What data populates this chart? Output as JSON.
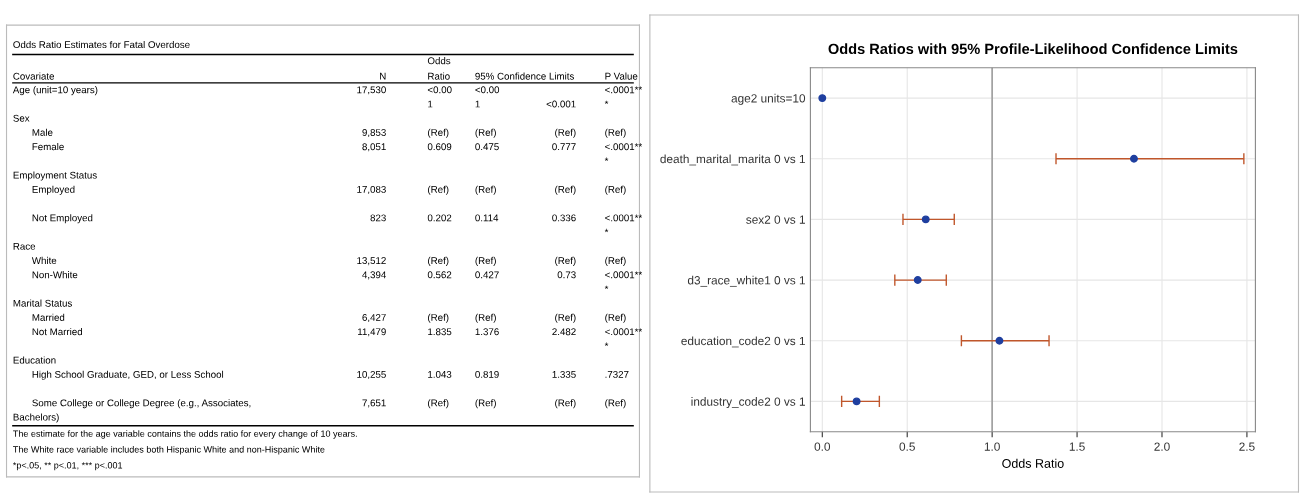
{
  "chart_data": [
    {
      "type": "other",
      "title": "Odds Ratio Estimates for Fatal Overdose",
      "categories": [
        "Covariate",
        "N",
        "Odds\nRatio",
        "95% Confidence Limits",
        null,
        "P Value"
      ],
      "cell_labels": [
        [
          "Age (unit=10 years)",
          "17,530",
          "<0.00",
          "<0.00",
          null,
          "<.0001**"
        ],
        [
          null,
          null,
          "1",
          "1",
          "<0.001",
          "*"
        ],
        [
          "Sex",
          null,
          null,
          null,
          null,
          null
        ],
        [
          "Male",
          "9,853",
          "(Ref)",
          "(Ref)",
          "(Ref)",
          "(Ref)"
        ],
        [
          "Female",
          "8,051",
          "0.609",
          "0.475",
          "0.777",
          "<.0001**"
        ],
        [
          null,
          null,
          null,
          null,
          null,
          "*"
        ],
        [
          "Employment Status",
          null,
          null,
          null,
          null,
          null
        ],
        [
          "Employed",
          "17,083",
          "(Ref)",
          "(Ref)",
          "(Ref)",
          "(Ref)"
        ],
        [
          null,
          null,
          null,
          null,
          null,
          null
        ],
        [
          "Not Employed",
          "823",
          "0.202",
          "0.114",
          "0.336",
          "<.0001**"
        ],
        [
          null,
          null,
          null,
          null,
          null,
          "*"
        ],
        [
          "Race",
          null,
          null,
          null,
          null,
          null
        ],
        [
          "White",
          "13,512",
          "(Ref)",
          "(Ref)",
          "(Ref)",
          "(Ref)"
        ],
        [
          "Non-White",
          "4,394",
          "0.562",
          "0.427",
          "0.73",
          "<.0001**"
        ],
        [
          null,
          null,
          null,
          null,
          null,
          "*"
        ],
        [
          "Marital Status",
          null,
          null,
          null,
          null,
          null
        ],
        [
          "Married",
          "6,427",
          "(Ref)",
          "(Ref)",
          "(Ref)",
          "(Ref)"
        ],
        [
          "Not Married",
          "11,479",
          "1.835",
          "1.376",
          "2.482",
          "<.0001**"
        ],
        [
          null,
          null,
          null,
          null,
          null,
          "*"
        ],
        [
          "Education",
          null,
          null,
          null,
          null,
          null
        ],
        [
          "High School Graduate, GED, or Less School",
          "10,255",
          "1.043",
          "0.819",
          "1.335",
          ".7327"
        ],
        [
          null,
          null,
          null,
          null,
          null,
          null
        ],
        [
          "Some College or College Degree (e.g., Associates,",
          "7,651",
          "(Ref)",
          "(Ref)",
          "(Ref)",
          "(Ref)"
        ],
        [
          "Bachelors)",
          null,
          null,
          null,
          null,
          null
        ]
      ],
      "annotations": [
        "The estimate for the age variable contains the odds ratio for every change of 10 years.",
        "The White race variable includes both Hispanic White and non-Hispanic White",
        "*p<.05, ** p<.01, *** p<.001"
      ]
    },
    {
      "type": "scatter",
      "orientation": "horizontal",
      "title": "Odds Ratios with 95% Profile-Likelihood Confidence Limits",
      "xlabel": "Odds Ratio",
      "categories": [
        "age2 units=10",
        "death_marital_marita 0 vs 1",
        "sex2 0 vs 1",
        "d3_race_white1 0 vs 1",
        "education_code2 0 vs 1",
        "industry_code2 0 vs 1"
      ],
      "series": [
        {
          "color": "#1f3f9f",
          "values": [
            0.0,
            1.835,
            0.609,
            0.562,
            1.043,
            0.202
          ],
          "errors": [
            null,
            [
              1.376,
              2.482
            ],
            [
              0.475,
              0.777
            ],
            [
              0.427,
              0.73
            ],
            [
              0.819,
              1.335
            ],
            [
              0.114,
              0.336
            ]
          ]
        }
      ],
      "color": "#c0562b",
      "marker": "circle",
      "xlim": [
        -0.07,
        2.55
      ],
      "xticks": [
        {
          "value": 0,
          "label": "0.0"
        },
        {
          "value": 0.5,
          "label": "0.5"
        },
        {
          "value": 1,
          "label": "1.0"
        },
        {
          "value": 1.5,
          "label": "1.5"
        },
        {
          "value": 2,
          "label": "2.0"
        },
        {
          "value": 2.5,
          "label": "2.5"
        }
      ],
      "ref_lines": [
        {
          "axis": "x",
          "value": 1,
          "color": "#a0a0a0"
        }
      ],
      "grid": true
    }
  ]
}
